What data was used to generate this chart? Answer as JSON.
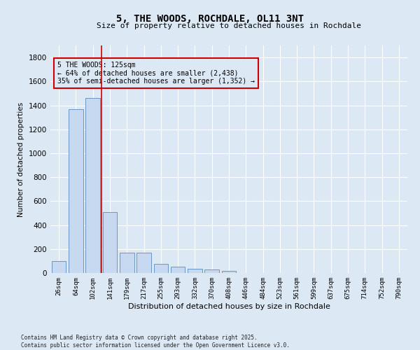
{
  "title": "5, THE WOODS, ROCHDALE, OL11 3NT",
  "subtitle": "Size of property relative to detached houses in Rochdale",
  "xlabel": "Distribution of detached houses by size in Rochdale",
  "ylabel": "Number of detached properties",
  "categories": [
    "26sqm",
    "64sqm",
    "102sqm",
    "141sqm",
    "179sqm",
    "217sqm",
    "255sqm",
    "293sqm",
    "332sqm",
    "370sqm",
    "408sqm",
    "446sqm",
    "484sqm",
    "523sqm",
    "561sqm",
    "599sqm",
    "637sqm",
    "675sqm",
    "714sqm",
    "752sqm",
    "790sqm"
  ],
  "values": [
    100,
    1370,
    1460,
    510,
    170,
    170,
    75,
    55,
    35,
    30,
    18,
    0,
    0,
    0,
    0,
    0,
    0,
    0,
    0,
    0,
    0
  ],
  "bar_color": "#c6d9f0",
  "bar_edge_color": "#5a8abf",
  "vline_color": "#cc0000",
  "annotation_line1": "5 THE WOODS: 125sqm",
  "annotation_line2": "← 64% of detached houses are smaller (2,438)",
  "annotation_line3": "35% of semi-detached houses are larger (1,352) →",
  "annotation_box_color": "#cc0000",
  "ylim": [
    0,
    1900
  ],
  "yticks": [
    0,
    200,
    400,
    600,
    800,
    1000,
    1200,
    1400,
    1600,
    1800
  ],
  "background_color": "#dde8f5",
  "grid_color": "#ffffff",
  "footer_line1": "Contains HM Land Registry data © Crown copyright and database right 2025.",
  "footer_line2": "Contains public sector information licensed under the Open Government Licence v3.0."
}
